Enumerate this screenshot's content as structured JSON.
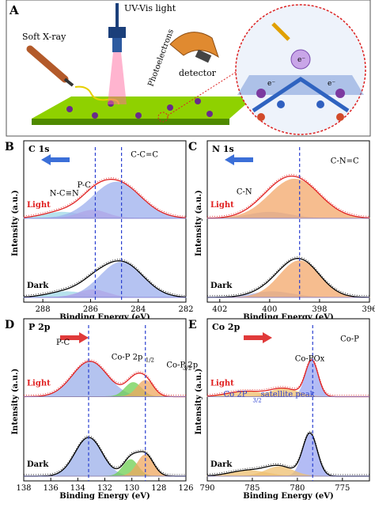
{
  "figure": {
    "panel_a": {
      "letter": "A",
      "labels": {
        "soft_xray": "Soft X-ray",
        "uv_vis": "UV-Vis light",
        "photoelectrons": "Photoelectrons",
        "detector": "detector",
        "electron": "e⁻"
      }
    },
    "axis_common": {
      "ylabel": "Intensity (a.u.)",
      "xlabel": "Binding Energy (eV)",
      "light_label": "Light",
      "dark_label": "Dark"
    }
  },
  "chart_data": [
    {
      "panel": "B",
      "title": "C 1s",
      "type": "line",
      "xlabel": "Binding Energy (eV)",
      "ylabel": "Intensity (a.u.)",
      "xlim": [
        288.8,
        282
      ],
      "xticks": [
        288,
        286,
        284,
        282
      ],
      "direction": "left",
      "peak_labels": [
        "N-C≡N",
        "P-C",
        "C-C=C"
      ],
      "vlines": [
        285.8,
        284.7
      ],
      "light": {
        "peaks": [
          {
            "name": "N-C≡N",
            "center": 287.2,
            "amp": 0.12,
            "width": 0.8
          },
          {
            "name": "P-C",
            "center": 285.9,
            "amp": 0.16,
            "width": 0.6
          },
          {
            "name": "C-C=C",
            "center": 284.9,
            "amp": 0.72,
            "width": 1.0
          }
        ]
      },
      "dark": {
        "peaks": [
          {
            "name": "N-C≡N",
            "center": 287.0,
            "amp": 0.12,
            "width": 0.8
          },
          {
            "name": "P-C",
            "center": 285.9,
            "amp": 0.16,
            "width": 0.6
          },
          {
            "name": "C-C=C",
            "center": 284.7,
            "amp": 0.75,
            "width": 0.9
          }
        ]
      }
    },
    {
      "panel": "C",
      "title": "N 1s",
      "type": "line",
      "xlabel": "Binding Energy (eV)",
      "ylabel": "Intensity (a.u.)",
      "xlim": [
        402.5,
        396
      ],
      "xticks": [
        402,
        400,
        398,
        396
      ],
      "direction": "left",
      "peak_labels": [
        "C-N",
        "C-N=C"
      ],
      "vlines": [
        398.8
      ],
      "light": {
        "peaks": [
          {
            "name": "C-N",
            "center": 400.0,
            "amp": 0.12,
            "width": 0.8
          },
          {
            "name": "C-N=C",
            "center": 399.0,
            "amp": 0.78,
            "width": 1.0
          }
        ]
      },
      "dark": {
        "peaks": [
          {
            "name": "C-N",
            "center": 399.9,
            "amp": 0.12,
            "width": 0.8
          },
          {
            "name": "C-N=C",
            "center": 398.8,
            "amp": 0.78,
            "width": 0.8
          }
        ]
      }
    },
    {
      "panel": "D",
      "title": "P 2p",
      "type": "line",
      "xlabel": "Binding Energy (eV)",
      "ylabel": "Intensity (a.u.)",
      "xlim": [
        138,
        126
      ],
      "xticks": [
        138,
        136,
        134,
        132,
        130,
        128,
        126
      ],
      "direction": "right",
      "peak_labels": [
        "P-C",
        "Co-P 2p",
        "1/2",
        "Co-P 2p",
        "3/2"
      ],
      "vlines": [
        133.2,
        129.0
      ],
      "light": {
        "peaks": [
          {
            "name": "P-C",
            "center": 133.1,
            "amp": 0.7,
            "width": 1.3
          },
          {
            "name": "Co-P 2p1/2",
            "center": 129.9,
            "amp": 0.28,
            "width": 0.6
          },
          {
            "name": "Co-P 2p3/2",
            "center": 129.0,
            "amp": 0.32,
            "width": 0.6
          }
        ]
      },
      "dark": {
        "peaks": [
          {
            "name": "P-C",
            "center": 133.2,
            "amp": 0.82,
            "width": 1.0
          },
          {
            "name": "Co-P 2p1/2",
            "center": 130.1,
            "amp": 0.35,
            "width": 0.55
          },
          {
            "name": "Co-P 2p3/2",
            "center": 129.0,
            "amp": 0.45,
            "width": 0.6
          }
        ]
      }
    },
    {
      "panel": "E",
      "title": "Co 2p",
      "type": "line",
      "xlabel": "Binding Energy (eV)",
      "ylabel": "Intensity (a.u.)",
      "xlim": [
        790,
        772
      ],
      "xticks": [
        790,
        785,
        780,
        775
      ],
      "direction": "right",
      "peak_labels": [
        "Co-P",
        "Co-POx",
        "Co 2P",
        "3/2",
        " satellite peak"
      ],
      "vlines": [
        778.3
      ],
      "light": {
        "peaks": [
          {
            "name": "Co-P",
            "center": 778.4,
            "amp": 0.8,
            "width": 0.7
          },
          {
            "name": "Co-POx",
            "center": 781.5,
            "amp": 0.18,
            "width": 1.5
          },
          {
            "name": "satellite",
            "center": 785.8,
            "amp": 0.12,
            "width": 2.0
          }
        ]
      },
      "dark": {
        "peaks": [
          {
            "name": "Co-P",
            "center": 778.6,
            "amp": 0.9,
            "width": 0.8
          },
          {
            "name": "Co-POx",
            "center": 782.0,
            "amp": 0.2,
            "width": 1.5
          },
          {
            "name": "satellite",
            "center": 785.5,
            "amp": 0.12,
            "width": 2.0
          }
        ]
      }
    }
  ]
}
